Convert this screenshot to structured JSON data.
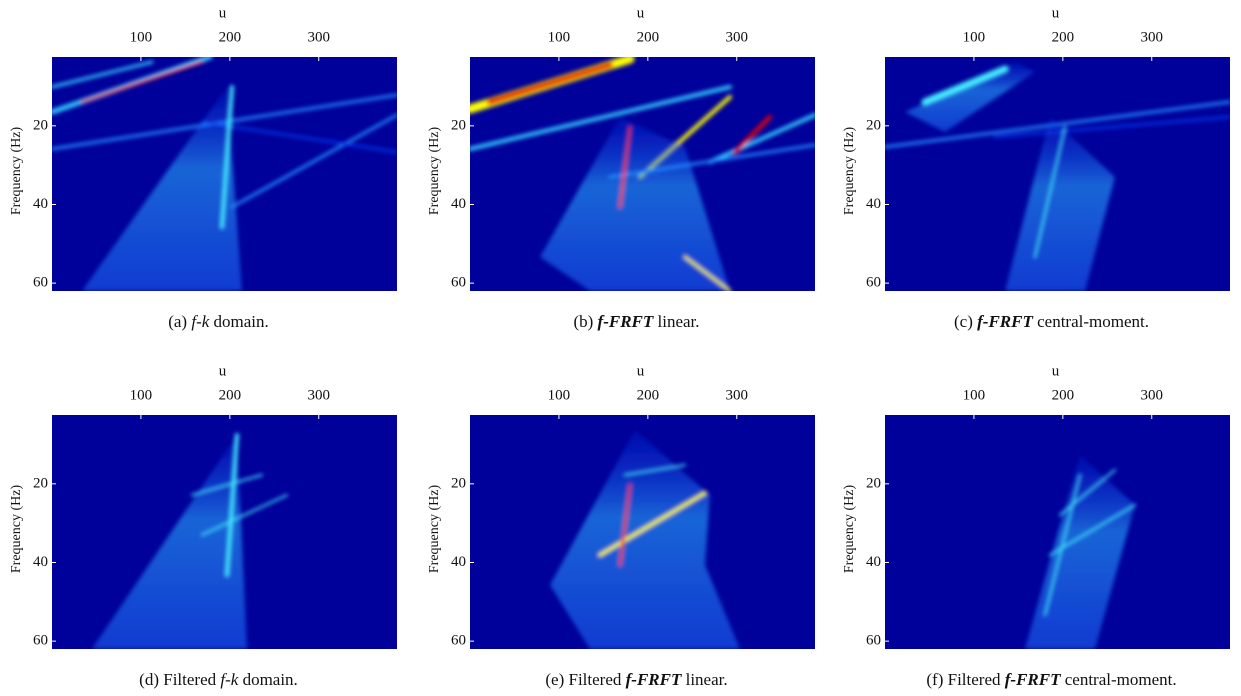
{
  "figure": {
    "panels": [
      {
        "caption": [
          "(a) ",
          "f-k",
          " domain."
        ],
        "xlabel": "u",
        "ylabel": "Frequency (Hz)",
        "xlim": [
          0,
          388
        ],
        "ylim": [
          2.5,
          62
        ],
        "y_inverted": true,
        "xticks": [
          100,
          200,
          300
        ],
        "yticks": [
          20,
          40,
          60
        ]
      },
      {
        "caption": [
          "(b) ",
          "f-FRFT",
          " linear."
        ],
        "xlabel": "u",
        "ylabel": "Frequency (Hz)",
        "xlim": [
          0,
          388
        ],
        "ylim": [
          2.5,
          62
        ],
        "y_inverted": true,
        "xticks": [
          100,
          200,
          300
        ],
        "yticks": [
          20,
          40,
          60
        ]
      },
      {
        "caption": [
          "(c) ",
          "f-FRFT",
          " central-moment."
        ],
        "xlabel": "u",
        "ylabel": "Frequency (Hz)",
        "xlim": [
          0,
          388
        ],
        "ylim": [
          2.5,
          62
        ],
        "y_inverted": true,
        "xticks": [
          100,
          200,
          300
        ],
        "yticks": [
          20,
          40,
          60
        ]
      },
      {
        "caption": [
          "(d) Filtered ",
          "f-k",
          " domain."
        ],
        "xlabel": "u",
        "ylabel": "Frequency (Hz)",
        "xlim": [
          0,
          388
        ],
        "ylim": [
          2.5,
          62
        ],
        "y_inverted": true,
        "xticks": [
          100,
          200,
          300
        ],
        "yticks": [
          20,
          40,
          60
        ]
      },
      {
        "caption": [
          "(e) Filtered ",
          "f-FRFT",
          " linear."
        ],
        "xlabel": "u",
        "ylabel": "Frequency (Hz)",
        "xlim": [
          0,
          388
        ],
        "ylim": [
          2.5,
          62
        ],
        "y_inverted": true,
        "xticks": [
          100,
          200,
          300
        ],
        "yticks": [
          20,
          40,
          60
        ]
      },
      {
        "caption": [
          "(f) Filtered ",
          "f-FRFT",
          " central-moment."
        ],
        "xlabel": "u",
        "ylabel": "Frequency (Hz)",
        "xlim": [
          0,
          388
        ],
        "ylim": [
          2.5,
          62
        ],
        "y_inverted": true,
        "xticks": [
          100,
          200,
          300
        ],
        "yticks": [
          20,
          40,
          60
        ]
      }
    ]
  }
}
